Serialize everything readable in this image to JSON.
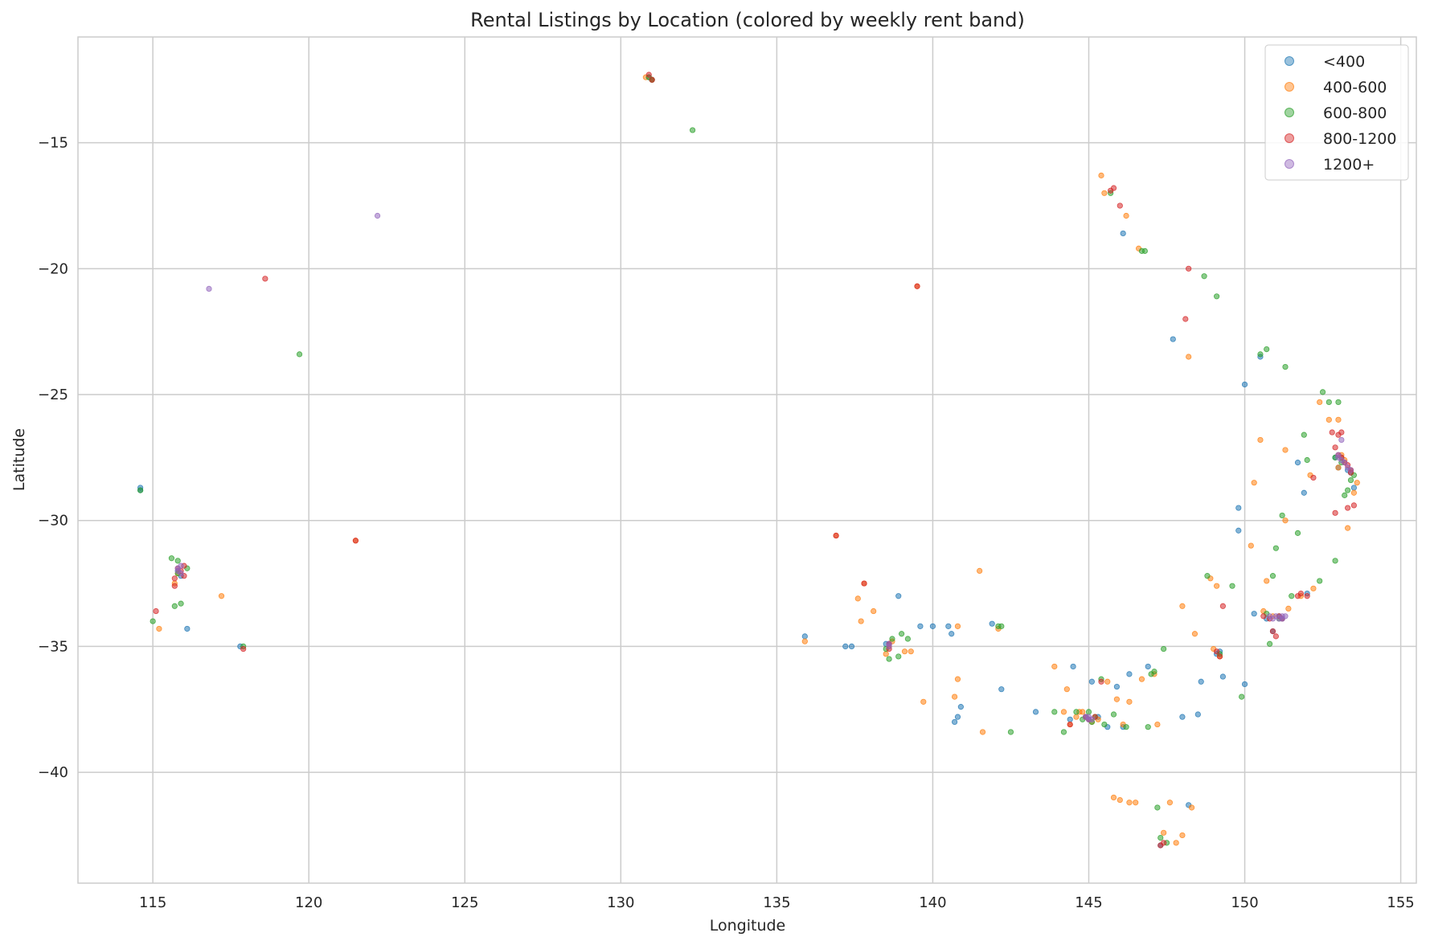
{
  "chart_data": {
    "type": "scatter",
    "title": "Rental Listings by Location (colored by weekly rent band)",
    "xlabel": "Longitude",
    "ylabel": "Latitude",
    "xlim": [
      112.6,
      155.5
    ],
    "ylim": [
      -44.4,
      -10.8
    ],
    "xticks": [
      115,
      120,
      125,
      130,
      135,
      140,
      145,
      150,
      155
    ],
    "yticks": [
      -15,
      -20,
      -25,
      -30,
      -35,
      -40
    ],
    "grid": true,
    "legend_position": "top-right",
    "series": [
      {
        "name": "<400",
        "color": "#1f77b4",
        "points": [
          [
            114.6,
            -28.7
          ],
          [
            114.6,
            -28.8
          ],
          [
            115.8,
            -32.0
          ],
          [
            115.9,
            -32.2
          ],
          [
            116.1,
            -34.3
          ],
          [
            117.8,
            -35.0
          ],
          [
            130.9,
            -12.4
          ],
          [
            131.0,
            -12.5
          ],
          [
            135.9,
            -34.6
          ],
          [
            137.2,
            -35.0
          ],
          [
            137.4,
            -35.0
          ],
          [
            138.5,
            -34.9
          ],
          [
            138.6,
            -34.9
          ],
          [
            138.9,
            -33.0
          ],
          [
            139.6,
            -34.2
          ],
          [
            140.0,
            -34.2
          ],
          [
            140.5,
            -34.2
          ],
          [
            140.6,
            -34.5
          ],
          [
            140.7,
            -38.0
          ],
          [
            140.8,
            -37.8
          ],
          [
            140.9,
            -37.4
          ],
          [
            141.9,
            -34.1
          ],
          [
            142.2,
            -36.7
          ],
          [
            143.3,
            -37.6
          ],
          [
            144.4,
            -37.9
          ],
          [
            144.5,
            -35.8
          ],
          [
            144.9,
            -37.8
          ],
          [
            145.0,
            -37.9
          ],
          [
            145.1,
            -36.4
          ],
          [
            145.3,
            -37.8
          ],
          [
            145.6,
            -38.2
          ],
          [
            145.9,
            -36.6
          ],
          [
            146.1,
            -18.6
          ],
          [
            146.1,
            -38.2
          ],
          [
            146.3,
            -36.1
          ],
          [
            146.9,
            -35.8
          ],
          [
            147.3,
            -42.9
          ],
          [
            147.7,
            -22.8
          ],
          [
            148.0,
            -37.8
          ],
          [
            148.2,
            -41.3
          ],
          [
            148.5,
            -37.7
          ],
          [
            148.6,
            -36.4
          ],
          [
            149.1,
            -35.3
          ],
          [
            149.2,
            -35.2
          ],
          [
            149.3,
            -36.2
          ],
          [
            149.8,
            -30.4
          ],
          [
            149.8,
            -29.5
          ],
          [
            150.0,
            -24.6
          ],
          [
            150.0,
            -36.5
          ],
          [
            150.3,
            -33.7
          ],
          [
            150.5,
            -23.5
          ],
          [
            150.7,
            -33.9
          ],
          [
            150.9,
            -34.4
          ],
          [
            151.1,
            -33.8
          ],
          [
            151.2,
            -33.9
          ],
          [
            151.7,
            -27.7
          ],
          [
            151.9,
            -28.9
          ],
          [
            152.0,
            -32.9
          ],
          [
            152.9,
            -27.5
          ],
          [
            153.0,
            -27.9
          ],
          [
            153.1,
            -27.5
          ],
          [
            153.3,
            -28.0
          ],
          [
            153.4,
            -28.1
          ],
          [
            153.5,
            -28.7
          ]
        ]
      },
      {
        "name": "400-600",
        "color": "#ff7f0e",
        "points": [
          [
            115.2,
            -34.3
          ],
          [
            115.7,
            -32.5
          ],
          [
            115.8,
            -32.1
          ],
          [
            117.2,
            -33.0
          ],
          [
            121.5,
            -30.8
          ],
          [
            130.8,
            -12.4
          ],
          [
            131.0,
            -12.5
          ],
          [
            135.9,
            -34.8
          ],
          [
            136.9,
            -30.6
          ],
          [
            137.6,
            -33.1
          ],
          [
            137.7,
            -34.0
          ],
          [
            137.8,
            -32.5
          ],
          [
            138.1,
            -33.6
          ],
          [
            138.5,
            -35.3
          ],
          [
            138.6,
            -35.0
          ],
          [
            138.7,
            -34.8
          ],
          [
            139.1,
            -35.2
          ],
          [
            139.3,
            -35.2
          ],
          [
            139.5,
            -20.7
          ],
          [
            139.7,
            -37.2
          ],
          [
            140.7,
            -37.0
          ],
          [
            140.8,
            -36.3
          ],
          [
            140.8,
            -34.2
          ],
          [
            141.5,
            -32.0
          ],
          [
            141.6,
            -38.4
          ],
          [
            142.1,
            -34.3
          ],
          [
            143.9,
            -35.8
          ],
          [
            144.2,
            -37.6
          ],
          [
            144.3,
            -36.7
          ],
          [
            144.4,
            -38.1
          ],
          [
            144.6,
            -37.8
          ],
          [
            144.7,
            -37.6
          ],
          [
            144.8,
            -37.6
          ],
          [
            145.1,
            -38.0
          ],
          [
            145.3,
            -37.9
          ],
          [
            145.4,
            -16.3
          ],
          [
            145.5,
            -17.0
          ],
          [
            145.6,
            -36.4
          ],
          [
            145.8,
            -41.0
          ],
          [
            145.9,
            -37.1
          ],
          [
            146.0,
            -41.1
          ],
          [
            146.1,
            -38.1
          ],
          [
            146.2,
            -17.9
          ],
          [
            146.3,
            -37.2
          ],
          [
            146.3,
            -41.2
          ],
          [
            146.5,
            -41.2
          ],
          [
            146.6,
            -19.2
          ],
          [
            146.7,
            -36.3
          ],
          [
            147.1,
            -36.1
          ],
          [
            147.2,
            -38.1
          ],
          [
            147.4,
            -42.4
          ],
          [
            147.6,
            -41.2
          ],
          [
            147.8,
            -42.8
          ],
          [
            148.0,
            -42.5
          ],
          [
            148.0,
            -33.4
          ],
          [
            148.2,
            -23.5
          ],
          [
            148.3,
            -41.4
          ],
          [
            148.4,
            -34.5
          ],
          [
            148.9,
            -32.3
          ],
          [
            149.0,
            -35.1
          ],
          [
            149.1,
            -32.6
          ],
          [
            149.2,
            -35.4
          ],
          [
            150.2,
            -31.0
          ],
          [
            150.3,
            -28.5
          ],
          [
            150.5,
            -26.8
          ],
          [
            150.6,
            -33.6
          ],
          [
            150.7,
            -32.4
          ],
          [
            150.9,
            -33.8
          ],
          [
            151.3,
            -27.2
          ],
          [
            151.3,
            -30.0
          ],
          [
            151.4,
            -33.5
          ],
          [
            151.8,
            -33.0
          ],
          [
            152.1,
            -28.2
          ],
          [
            152.2,
            -32.7
          ],
          [
            152.4,
            -25.3
          ],
          [
            152.7,
            -26.0
          ],
          [
            153.0,
            -27.9
          ],
          [
            153.0,
            -26.0
          ],
          [
            153.1,
            -27.4
          ],
          [
            153.2,
            -27.6
          ],
          [
            153.3,
            -30.3
          ],
          [
            153.4,
            -28.0
          ],
          [
            153.5,
            -28.9
          ],
          [
            153.6,
            -28.5
          ]
        ]
      },
      {
        "name": "600-800",
        "color": "#2ca02c",
        "points": [
          [
            114.6,
            -28.8
          ],
          [
            115.0,
            -34.0
          ],
          [
            115.6,
            -31.5
          ],
          [
            115.7,
            -33.4
          ],
          [
            115.8,
            -31.6
          ],
          [
            115.8,
            -32.1
          ],
          [
            115.9,
            -33.3
          ],
          [
            116.1,
            -31.9
          ],
          [
            117.9,
            -35.0
          ],
          [
            119.7,
            -23.4
          ],
          [
            130.9,
            -12.4
          ],
          [
            131.0,
            -12.5
          ],
          [
            132.3,
            -14.5
          ],
          [
            138.5,
            -35.1
          ],
          [
            138.6,
            -35.5
          ],
          [
            138.7,
            -34.7
          ],
          [
            138.9,
            -35.4
          ],
          [
            139.0,
            -34.5
          ],
          [
            139.2,
            -34.7
          ],
          [
            142.1,
            -34.2
          ],
          [
            142.2,
            -34.2
          ],
          [
            142.5,
            -38.4
          ],
          [
            143.9,
            -37.6
          ],
          [
            144.2,
            -38.4
          ],
          [
            144.6,
            -37.6
          ],
          [
            144.8,
            -37.9
          ],
          [
            145.0,
            -37.6
          ],
          [
            145.1,
            -38.0
          ],
          [
            145.2,
            -37.8
          ],
          [
            145.4,
            -36.3
          ],
          [
            145.5,
            -38.1
          ],
          [
            145.7,
            -17.0
          ],
          [
            145.8,
            -37.7
          ],
          [
            146.2,
            -38.2
          ],
          [
            146.7,
            -19.3
          ],
          [
            146.8,
            -19.3
          ],
          [
            146.9,
            -38.2
          ],
          [
            147.0,
            -36.1
          ],
          [
            147.1,
            -36.0
          ],
          [
            147.2,
            -41.4
          ],
          [
            147.3,
            -42.6
          ],
          [
            147.4,
            -35.1
          ],
          [
            147.5,
            -42.8
          ],
          [
            148.7,
            -20.3
          ],
          [
            148.8,
            -32.2
          ],
          [
            149.1,
            -21.1
          ],
          [
            149.2,
            -35.3
          ],
          [
            149.6,
            -32.6
          ],
          [
            149.9,
            -37.0
          ],
          [
            150.5,
            -23.4
          ],
          [
            150.7,
            -23.2
          ],
          [
            150.7,
            -33.7
          ],
          [
            150.8,
            -34.9
          ],
          [
            150.9,
            -32.2
          ],
          [
            151.0,
            -31.1
          ],
          [
            151.1,
            -33.9
          ],
          [
            151.2,
            -29.8
          ],
          [
            151.3,
            -23.9
          ],
          [
            151.5,
            -33.0
          ],
          [
            151.7,
            -30.5
          ],
          [
            151.9,
            -26.6
          ],
          [
            152.0,
            -27.6
          ],
          [
            152.4,
            -32.4
          ],
          [
            152.5,
            -24.9
          ],
          [
            152.7,
            -25.3
          ],
          [
            152.9,
            -27.5
          ],
          [
            152.9,
            -31.6
          ],
          [
            153.0,
            -25.3
          ],
          [
            153.1,
            -27.7
          ],
          [
            153.2,
            -29.0
          ],
          [
            153.3,
            -28.8
          ],
          [
            153.4,
            -28.4
          ],
          [
            153.5,
            -28.2
          ]
        ]
      },
      {
        "name": "800-1200",
        "color": "#d62728",
        "points": [
          [
            115.1,
            -33.6
          ],
          [
            115.7,
            -32.3
          ],
          [
            115.7,
            -32.6
          ],
          [
            115.8,
            -31.9
          ],
          [
            115.9,
            -32.0
          ],
          [
            116.0,
            -31.8
          ],
          [
            116.0,
            -32.2
          ],
          [
            117.9,
            -35.1
          ],
          [
            118.6,
            -20.4
          ],
          [
            121.5,
            -30.8
          ],
          [
            130.9,
            -12.3
          ],
          [
            131.0,
            -12.5
          ],
          [
            136.9,
            -30.6
          ],
          [
            137.8,
            -32.5
          ],
          [
            138.6,
            -34.9
          ],
          [
            138.6,
            -35.1
          ],
          [
            139.5,
            -20.7
          ],
          [
            144.4,
            -38.1
          ],
          [
            144.9,
            -37.8
          ],
          [
            145.0,
            -37.9
          ],
          [
            145.2,
            -37.8
          ],
          [
            145.4,
            -36.4
          ],
          [
            145.7,
            -16.9
          ],
          [
            145.8,
            -16.8
          ],
          [
            146.0,
            -17.5
          ],
          [
            147.3,
            -42.9
          ],
          [
            147.4,
            -42.8
          ],
          [
            148.1,
            -22.0
          ],
          [
            148.2,
            -20.0
          ],
          [
            149.1,
            -35.2
          ],
          [
            149.2,
            -35.4
          ],
          [
            149.3,
            -33.4
          ],
          [
            150.6,
            -33.8
          ],
          [
            150.8,
            -33.9
          ],
          [
            150.9,
            -34.4
          ],
          [
            151.0,
            -34.6
          ],
          [
            151.1,
            -33.8
          ],
          [
            151.2,
            -33.9
          ],
          [
            151.7,
            -33.0
          ],
          [
            151.8,
            -32.9
          ],
          [
            152.0,
            -33.0
          ],
          [
            152.2,
            -28.3
          ],
          [
            152.8,
            -26.5
          ],
          [
            152.9,
            -29.7
          ],
          [
            152.9,
            -27.1
          ],
          [
            153.0,
            -27.4
          ],
          [
            153.0,
            -26.6
          ],
          [
            153.1,
            -27.5
          ],
          [
            153.1,
            -26.5
          ],
          [
            153.2,
            -27.7
          ],
          [
            153.3,
            -27.8
          ],
          [
            153.3,
            -29.5
          ],
          [
            153.4,
            -28.0
          ],
          [
            153.4,
            -28.1
          ],
          [
            153.5,
            -29.4
          ]
        ]
      },
      {
        "name": "1200+",
        "color": "#9467bd",
        "points": [
          [
            115.8,
            -31.9
          ],
          [
            115.8,
            -32.0
          ],
          [
            115.9,
            -31.8
          ],
          [
            115.9,
            -32.1
          ],
          [
            116.8,
            -20.8
          ],
          [
            122.2,
            -17.9
          ],
          [
            138.6,
            -34.9
          ],
          [
            138.6,
            -35.0
          ],
          [
            144.9,
            -37.8
          ],
          [
            145.0,
            -37.9
          ],
          [
            145.0,
            -37.8
          ],
          [
            145.1,
            -37.9
          ],
          [
            150.8,
            -33.8
          ],
          [
            150.9,
            -33.9
          ],
          [
            151.0,
            -33.8
          ],
          [
            151.1,
            -33.9
          ],
          [
            151.2,
            -33.9
          ],
          [
            151.2,
            -33.8
          ],
          [
            151.3,
            -33.8
          ],
          [
            153.0,
            -27.4
          ],
          [
            153.0,
            -27.5
          ],
          [
            153.1,
            -26.8
          ],
          [
            153.1,
            -27.6
          ],
          [
            153.2,
            -27.7
          ],
          [
            153.3,
            -27.9
          ],
          [
            153.4,
            -28.0
          ]
        ]
      }
    ]
  }
}
